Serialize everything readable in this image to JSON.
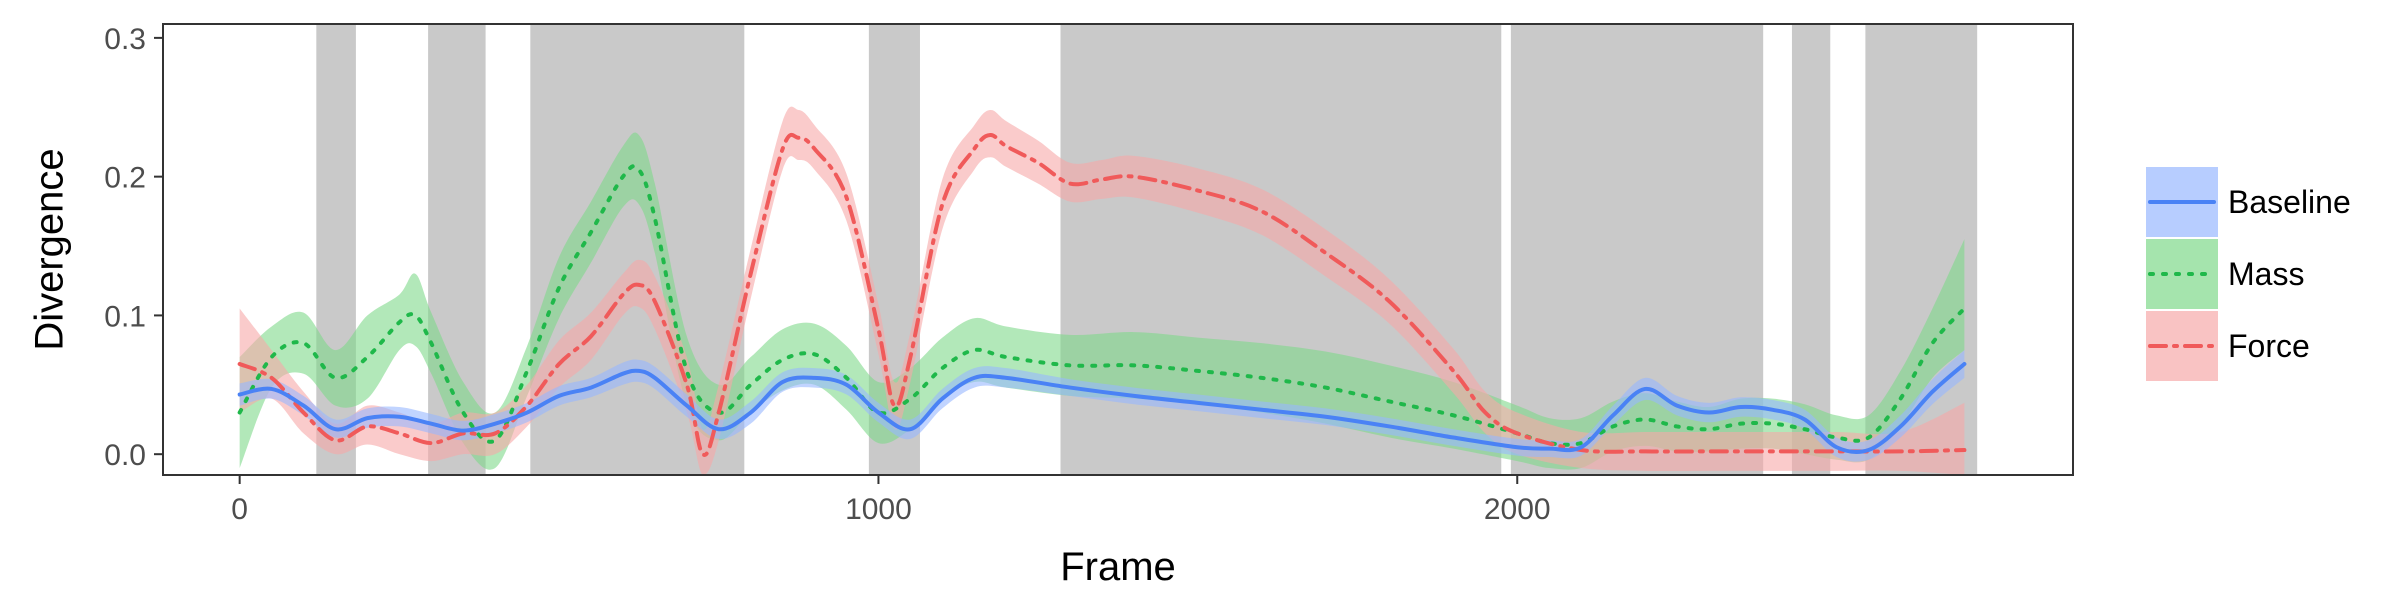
{
  "chart_data": {
    "type": "line",
    "xlabel": "Frame",
    "ylabel": "Divergence",
    "xlim": [
      -120,
      2870
    ],
    "ylim": [
      -0.015,
      0.31
    ],
    "x_ticks": [
      0,
      1000,
      2000
    ],
    "x_tick_labels": [
      "0",
      "1000",
      "2000"
    ],
    "y_ticks": [
      0.0,
      0.1,
      0.2,
      0.3
    ],
    "y_tick_labels": [
      "0.0",
      "0.1",
      "0.2",
      "0.3"
    ],
    "grid": false,
    "legend_position": "right",
    "shaded_regions": [
      [
        120,
        182
      ],
      [
        295,
        385
      ],
      [
        455,
        790
      ],
      [
        985,
        1065
      ],
      [
        1285,
        1975
      ],
      [
        1990,
        2385
      ],
      [
        2430,
        2490
      ],
      [
        2545,
        2720
      ]
    ],
    "shade_color": "#c9c9c9",
    "series": [
      {
        "name": "Baseline",
        "color": "#4a82f5",
        "band_color": "#98b8ff",
        "line_style": "solid",
        "x": [
          0,
          50,
          100,
          150,
          200,
          250,
          300,
          350,
          400,
          450,
          500,
          550,
          600,
          625,
          650,
          700,
          750,
          800,
          850,
          900,
          950,
          1000,
          1050,
          1100,
          1150,
          1200,
          1300,
          1400,
          1500,
          1600,
          1700,
          1800,
          1900,
          2000,
          2050,
          2100,
          2150,
          2200,
          2250,
          2300,
          2350,
          2400,
          2450,
          2500,
          2550,
          2600,
          2650,
          2700
        ],
        "y": [
          0.043,
          0.047,
          0.035,
          0.018,
          0.026,
          0.027,
          0.022,
          0.017,
          0.022,
          0.03,
          0.042,
          0.048,
          0.058,
          0.06,
          0.055,
          0.035,
          0.018,
          0.03,
          0.052,
          0.055,
          0.05,
          0.03,
          0.018,
          0.04,
          0.055,
          0.055,
          0.048,
          0.042,
          0.037,
          0.032,
          0.027,
          0.02,
          0.012,
          0.005,
          0.004,
          0.005,
          0.028,
          0.047,
          0.035,
          0.03,
          0.034,
          0.032,
          0.025,
          0.005,
          0.003,
          0.02,
          0.045,
          0.065
        ],
        "lower": [
          0.035,
          0.04,
          0.028,
          0.012,
          0.019,
          0.02,
          0.015,
          0.01,
          0.015,
          0.023,
          0.035,
          0.041,
          0.05,
          0.052,
          0.047,
          0.027,
          0.011,
          0.022,
          0.045,
          0.048,
          0.043,
          0.023,
          0.011,
          0.033,
          0.048,
          0.048,
          0.042,
          0.036,
          0.031,
          0.026,
          0.021,
          0.014,
          0.006,
          -0.001,
          -0.002,
          -0.001,
          0.021,
          0.039,
          0.028,
          0.023,
          0.027,
          0.025,
          0.018,
          -0.002,
          -0.004,
          0.012,
          0.036,
          0.055
        ],
        "upper": [
          0.051,
          0.054,
          0.042,
          0.025,
          0.033,
          0.034,
          0.029,
          0.024,
          0.029,
          0.037,
          0.049,
          0.055,
          0.066,
          0.068,
          0.063,
          0.043,
          0.025,
          0.038,
          0.059,
          0.062,
          0.057,
          0.037,
          0.025,
          0.047,
          0.062,
          0.062,
          0.054,
          0.048,
          0.043,
          0.038,
          0.033,
          0.026,
          0.018,
          0.011,
          0.01,
          0.011,
          0.035,
          0.055,
          0.042,
          0.037,
          0.041,
          0.039,
          0.032,
          0.012,
          0.01,
          0.028,
          0.054,
          0.075
        ]
      },
      {
        "name": "Mass",
        "color": "#1fb84a",
        "band_color": "#7fd98a",
        "line_style": "dotted",
        "x": [
          0,
          50,
          100,
          150,
          200,
          250,
          275,
          300,
          350,
          400,
          450,
          500,
          550,
          600,
          625,
          650,
          700,
          750,
          800,
          850,
          900,
          950,
          1000,
          1050,
          1100,
          1150,
          1200,
          1300,
          1400,
          1500,
          1600,
          1700,
          1800,
          1900,
          2000,
          2050,
          2100,
          2150,
          2200,
          2250,
          2300,
          2350,
          2400,
          2450,
          2500,
          2550,
          2600,
          2650,
          2700
        ],
        "y": [
          0.03,
          0.07,
          0.08,
          0.055,
          0.07,
          0.095,
          0.1,
          0.08,
          0.03,
          0.01,
          0.06,
          0.12,
          0.16,
          0.2,
          0.205,
          0.17,
          0.06,
          0.03,
          0.05,
          0.068,
          0.072,
          0.055,
          0.03,
          0.04,
          0.062,
          0.075,
          0.07,
          0.064,
          0.064,
          0.06,
          0.055,
          0.048,
          0.038,
          0.028,
          0.015,
          0.008,
          0.008,
          0.02,
          0.025,
          0.02,
          0.018,
          0.022,
          0.022,
          0.018,
          0.012,
          0.012,
          0.04,
          0.08,
          0.105
        ],
        "lower": [
          -0.01,
          0.048,
          0.058,
          0.035,
          0.04,
          0.075,
          0.078,
          0.058,
          0.008,
          -0.01,
          0.042,
          0.098,
          0.138,
          0.178,
          0.18,
          0.145,
          0.035,
          0.01,
          0.03,
          0.046,
          0.05,
          0.032,
          0.008,
          0.018,
          0.04,
          0.052,
          0.048,
          0.042,
          0.04,
          0.036,
          0.03,
          0.022,
          0.012,
          0.004,
          -0.005,
          -0.01,
          -0.01,
          0.002,
          0.006,
          0.002,
          0.002,
          0.004,
          0.004,
          0.0,
          -0.004,
          -0.004,
          0.02,
          0.055,
          0.075
        ],
        "upper": [
          0.07,
          0.092,
          0.102,
          0.075,
          0.1,
          0.115,
          0.13,
          0.102,
          0.052,
          0.03,
          0.078,
          0.142,
          0.182,
          0.222,
          0.23,
          0.195,
          0.085,
          0.05,
          0.07,
          0.09,
          0.094,
          0.078,
          0.052,
          0.062,
          0.084,
          0.098,
          0.092,
          0.086,
          0.088,
          0.084,
          0.08,
          0.074,
          0.064,
          0.052,
          0.035,
          0.026,
          0.026,
          0.038,
          0.044,
          0.038,
          0.034,
          0.04,
          0.04,
          0.036,
          0.028,
          0.028,
          0.06,
          0.105,
          0.155
        ]
      },
      {
        "name": "Force",
        "color": "#f05a5a",
        "band_color": "#f7a9a9",
        "line_style": "dashdot",
        "x": [
          0,
          50,
          100,
          150,
          200,
          250,
          300,
          350,
          400,
          450,
          500,
          550,
          600,
          625,
          650,
          700,
          725,
          750,
          800,
          850,
          875,
          900,
          950,
          1000,
          1025,
          1050,
          1100,
          1150,
          1175,
          1200,
          1250,
          1300,
          1350,
          1400,
          1500,
          1600,
          1700,
          1800,
          1900,
          1950,
          2000,
          2100,
          2200,
          2300,
          2400,
          2500,
          2600,
          2700
        ],
        "y": [
          0.065,
          0.055,
          0.03,
          0.01,
          0.02,
          0.015,
          0.008,
          0.015,
          0.015,
          0.035,
          0.065,
          0.085,
          0.115,
          0.122,
          0.11,
          0.05,
          0.0,
          0.03,
          0.13,
          0.22,
          0.228,
          0.22,
          0.185,
          0.09,
          0.035,
          0.07,
          0.18,
          0.22,
          0.23,
          0.222,
          0.21,
          0.195,
          0.198,
          0.2,
          0.19,
          0.175,
          0.145,
          0.11,
          0.06,
          0.03,
          0.015,
          0.003,
          0.002,
          0.002,
          0.002,
          0.002,
          0.002,
          0.003
        ],
        "lower": [
          0.03,
          0.04,
          0.015,
          0.0,
          0.007,
          0.0,
          -0.005,
          0.0,
          0.0,
          0.02,
          0.048,
          0.068,
          0.1,
          0.106,
          0.09,
          0.03,
          -0.015,
          0.01,
          0.112,
          0.205,
          0.212,
          0.205,
          0.168,
          0.072,
          0.018,
          0.052,
          0.162,
          0.205,
          0.214,
          0.207,
          0.195,
          0.182,
          0.184,
          0.185,
          0.174,
          0.158,
          0.128,
          0.094,
          0.044,
          0.015,
          0.0,
          -0.01,
          -0.012,
          -0.012,
          -0.012,
          -0.012,
          -0.012,
          -0.015
        ],
        "upper": [
          0.105,
          0.075,
          0.045,
          0.022,
          0.035,
          0.03,
          0.022,
          0.03,
          0.03,
          0.05,
          0.082,
          0.102,
          0.13,
          0.14,
          0.128,
          0.07,
          0.018,
          0.05,
          0.148,
          0.24,
          0.248,
          0.237,
          0.202,
          0.108,
          0.052,
          0.088,
          0.198,
          0.237,
          0.248,
          0.24,
          0.226,
          0.21,
          0.212,
          0.215,
          0.206,
          0.191,
          0.162,
          0.126,
          0.076,
          0.045,
          0.03,
          0.016,
          0.016,
          0.016,
          0.016,
          0.016,
          0.016,
          0.037
        ]
      }
    ]
  }
}
